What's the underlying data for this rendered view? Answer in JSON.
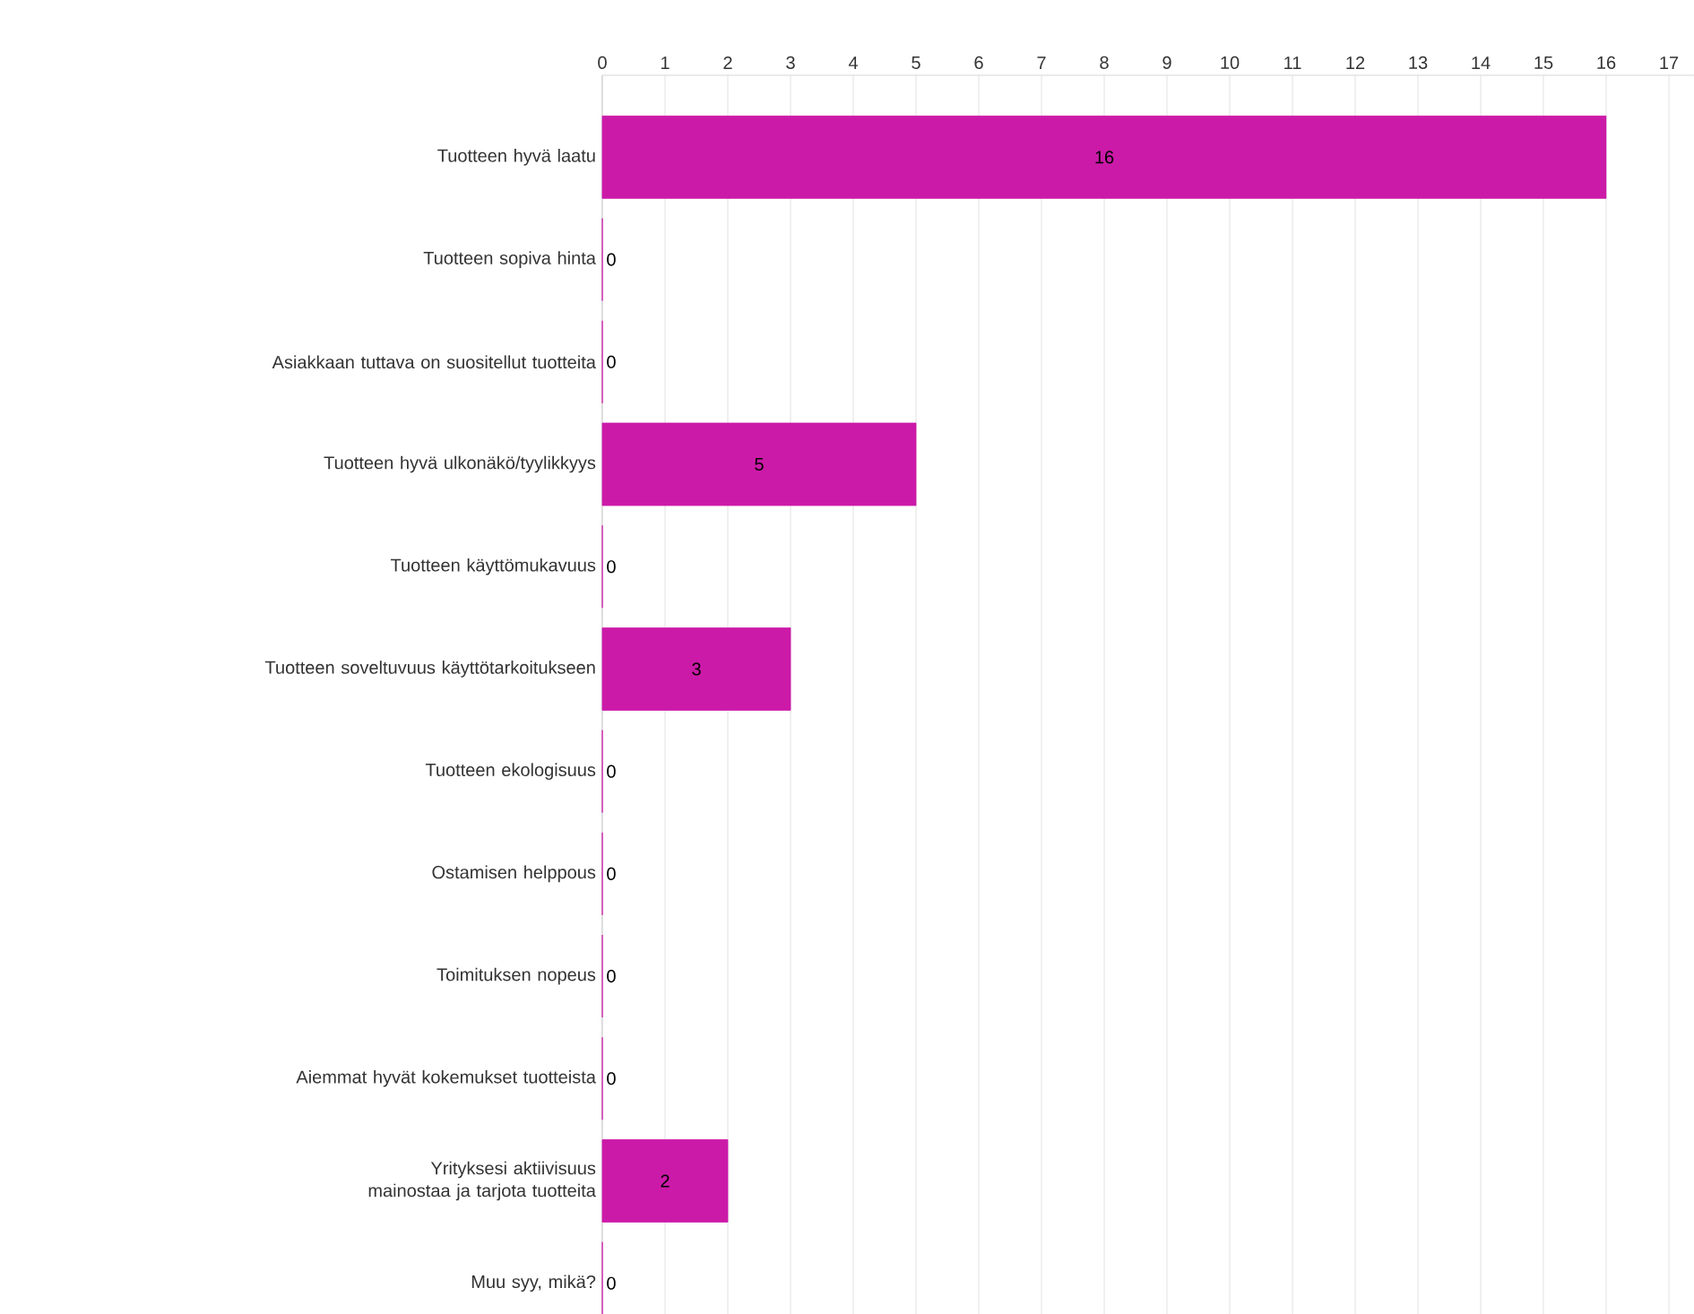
{
  "chart_data": {
    "type": "bar",
    "orientation": "horizontal",
    "categories": [
      "Tuotteen hyvä laatu",
      "Tuotteen sopiva hinta",
      "Asiakkaan tuttava on suositellut tuotteita",
      "Tuotteen hyvä ulkonäkö/tyylikkyys",
      "Tuotteen käyttömukavuus",
      "Tuotteen soveltuvuus käyttötarkoitukseen",
      "Tuotteen ekologisuus",
      "Ostamisen helppous",
      "Toimituksen nopeus",
      "Aiemmat hyvät kokemukset tuotteista",
      "Yrityksesi aktiivisuus mainostaa ja tarjota tuotteita",
      "Muu syy, mikä?"
    ],
    "values": [
      16,
      0,
      0,
      5,
      0,
      3,
      0,
      0,
      0,
      0,
      2,
      0
    ],
    "color": "#cc1aa8",
    "xlim": [
      0,
      17.4
    ],
    "xticks": [
      0,
      1,
      2,
      3,
      4,
      5,
      6,
      7,
      8,
      9,
      10,
      11,
      12,
      13,
      14,
      15,
      16,
      17
    ],
    "grid": "x",
    "data_labels": true
  }
}
